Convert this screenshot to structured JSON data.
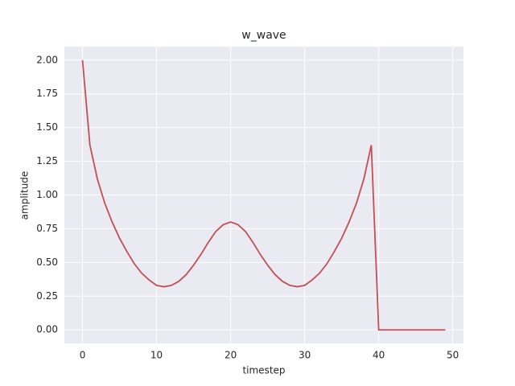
{
  "chart_data": {
    "type": "line",
    "title": "w_wave",
    "xlabel": "timestep",
    "ylabel": "amplitude",
    "x": [
      0,
      1,
      2,
      3,
      4,
      5,
      6,
      7,
      8,
      9,
      10,
      11,
      12,
      13,
      14,
      15,
      16,
      17,
      18,
      19,
      20,
      21,
      22,
      23,
      24,
      25,
      26,
      27,
      28,
      29,
      30,
      31,
      32,
      33,
      34,
      35,
      36,
      37,
      38,
      39,
      40,
      41,
      42,
      43,
      44,
      45,
      46,
      47,
      48,
      49
    ],
    "series": [
      {
        "color": "#c44e52",
        "values": [
          2.0,
          1.37,
          1.12,
          0.94,
          0.8,
          0.68,
          0.58,
          0.49,
          0.42,
          0.37,
          0.33,
          0.32,
          0.33,
          0.36,
          0.41,
          0.48,
          0.56,
          0.65,
          0.73,
          0.78,
          0.8,
          0.78,
          0.73,
          0.65,
          0.56,
          0.48,
          0.41,
          0.36,
          0.33,
          0.32,
          0.33,
          0.37,
          0.42,
          0.49,
          0.58,
          0.68,
          0.8,
          0.94,
          1.12,
          1.37,
          0,
          0,
          0,
          0,
          0,
          0,
          0,
          0,
          0,
          0
        ]
      }
    ],
    "xlim": [
      -2.45,
      51.45
    ],
    "ylim": [
      -0.1,
      2.1
    ],
    "xticks": [
      0,
      10,
      20,
      30,
      40,
      50
    ],
    "yticks": [
      {
        "value": 0,
        "label": "0.00"
      },
      {
        "value": 0.25,
        "label": "0.25"
      },
      {
        "value": 0.5,
        "label": "0.50"
      },
      {
        "value": 0.75,
        "label": "0.75"
      },
      {
        "value": 1,
        "label": "1.00"
      },
      {
        "value": 1.25,
        "label": "1.25"
      },
      {
        "value": 1.5,
        "label": "1.50"
      },
      {
        "value": 1.75,
        "label": "1.75"
      },
      {
        "value": 2,
        "label": "2.00"
      }
    ],
    "grid": true
  }
}
